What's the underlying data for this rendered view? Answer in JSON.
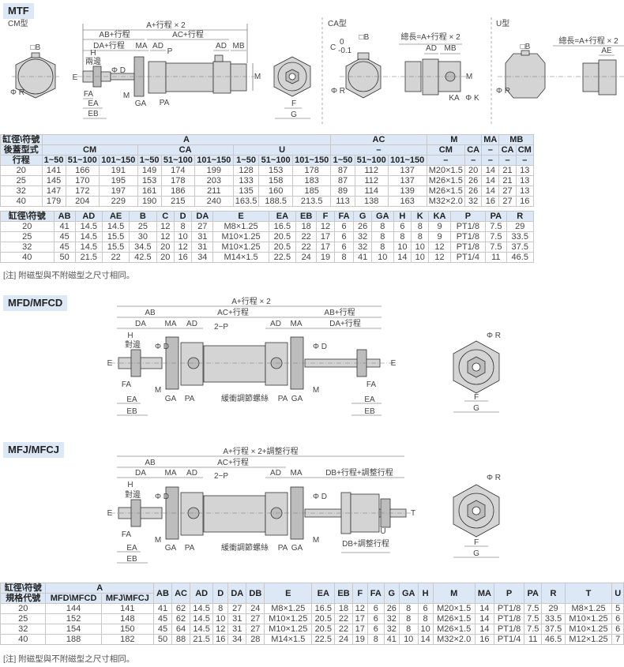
{
  "sections": {
    "mtf": "MTF",
    "mfd": "MFD/MFCD",
    "mfj": "MFJ/MFCJ"
  },
  "drawings": {
    "mtf": {
      "labels": [
        "CM型",
        "□B",
        "Φ R",
        "A+行程 × 2",
        "AB+行程",
        "AC+行程",
        "DA+行程",
        "MA",
        "AD",
        "AD",
        "MB",
        "H",
        "兩邊",
        "P",
        "Φ D",
        "E",
        "M",
        "FA",
        "M",
        "EA",
        "GA",
        "PA",
        "EB",
        "F",
        "G"
      ]
    },
    "ca": {
      "labels": [
        "CA型",
        "□B",
        "C",
        "0",
        "-0.1",
        "Φ R",
        "總長=A+行程 × 2",
        "AD",
        "MB",
        "M",
        "KA",
        "Φ K"
      ]
    },
    "u": {
      "labels": [
        "U型",
        "□B",
        "Φ R",
        "總長=A+行程 × 2",
        "AE"
      ]
    },
    "mfd": {
      "labels": [
        "A+行程 × 2",
        "AB",
        "AC+行程",
        "AB+行程",
        "DA",
        "MA",
        "AD",
        "2−P",
        "AD",
        "MA",
        "DA+行程",
        "H",
        "對邊",
        "Φ D",
        "Φ D",
        "E",
        "E",
        "FA",
        "FA",
        "M",
        "M",
        "GA",
        "PA",
        "緩衝調節螺絲",
        "PA",
        "GA",
        "EA",
        "EA",
        "EB",
        "EB",
        "Φ R",
        "F",
        "G"
      ]
    },
    "mfj": {
      "labels": [
        "A+行程 × 2+調整行程",
        "AB",
        "AC+行程",
        "DA",
        "MA",
        "AD",
        "2−P",
        "AD",
        "MA",
        "DB+行程+調整行程",
        "H",
        "對邊",
        "Φ D",
        "Φ D",
        "E",
        "T",
        "FA",
        "M",
        "M",
        "U",
        "GA",
        "PA",
        "緩衝調節螺絲",
        "PA",
        "GA",
        "DB+調整行程",
        "EA",
        "EB",
        "Φ R",
        "F",
        "G"
      ]
    }
  },
  "table1": {
    "head1": [
      "缸徑\\符號",
      "A",
      "AC",
      "M",
      "MA",
      "MB"
    ],
    "head2": [
      "後蓋型式",
      "CM",
      "CA",
      "U",
      "–",
      "CM",
      "CA",
      "–",
      "CA",
      "CM"
    ],
    "head3": [
      "行程",
      "1~50",
      "51~100",
      "101~150",
      "1~50",
      "51~100",
      "101~150",
      "1~50",
      "51~100",
      "101~150",
      "1~50",
      "51~100",
      "101~150",
      "–",
      "–",
      "–",
      "–",
      "–"
    ],
    "rows": [
      [
        "20",
        "141",
        "166",
        "191",
        "149",
        "174",
        "199",
        "128",
        "153",
        "178",
        "87",
        "112",
        "137",
        "M20×1.5",
        "20",
        "14",
        "21",
        "13"
      ],
      [
        "25",
        "145",
        "170",
        "195",
        "153",
        "178",
        "203",
        "133",
        "158",
        "183",
        "87",
        "112",
        "137",
        "M26×1.5",
        "26",
        "14",
        "21",
        "13"
      ],
      [
        "32",
        "147",
        "172",
        "197",
        "161",
        "186",
        "211",
        "135",
        "160",
        "185",
        "89",
        "114",
        "139",
        "M26×1.5",
        "26",
        "14",
        "27",
        "13"
      ],
      [
        "40",
        "179",
        "204",
        "229",
        "190",
        "215",
        "240",
        "163.5",
        "188.5",
        "213.5",
        "113",
        "138",
        "163",
        "M32×2.0",
        "32",
        "16",
        "27",
        "16"
      ]
    ]
  },
  "table2": {
    "head": [
      "缸徑\\符號",
      "AB",
      "AD",
      "AE",
      "B",
      "C",
      "D",
      "DA",
      "E",
      "EA",
      "EB",
      "F",
      "FA",
      "G",
      "GA",
      "H",
      "K",
      "KA",
      "P",
      "PA",
      "R"
    ],
    "rows": [
      [
        "20",
        "41",
        "14.5",
        "14.5",
        "25",
        "12",
        "8",
        "27",
        "M8×1.25",
        "16.5",
        "18",
        "12",
        "6",
        "26",
        "8",
        "6",
        "8",
        "9",
        "PT1/8",
        "7.5",
        "29"
      ],
      [
        "25",
        "45",
        "14.5",
        "15.5",
        "30",
        "12",
        "10",
        "31",
        "M10×1.25",
        "20.5",
        "22",
        "17",
        "6",
        "32",
        "8",
        "8",
        "8",
        "9",
        "PT1/8",
        "7.5",
        "33.5"
      ],
      [
        "32",
        "45",
        "14.5",
        "15.5",
        "34.5",
        "20",
        "12",
        "31",
        "M10×1.25",
        "20.5",
        "22",
        "17",
        "6",
        "32",
        "8",
        "10",
        "10",
        "12",
        "PT1/8",
        "7.5",
        "37.5"
      ],
      [
        "40",
        "50",
        "21.5",
        "22",
        "42.5",
        "20",
        "16",
        "34",
        "M14×1.5",
        "22.5",
        "24",
        "19",
        "8",
        "41",
        "10",
        "14",
        "10",
        "12",
        "PT1/4",
        "11",
        "46.5"
      ]
    ]
  },
  "note1": "[注] 附磁型與不附磁型之尺寸相同。",
  "table3": {
    "head1": [
      "缸徑\\符號",
      "A",
      "AB",
      "AC",
      "AD",
      "D",
      "DA",
      "DB",
      "E",
      "EA",
      "EB",
      "F",
      "FA",
      "G",
      "GA",
      "H",
      "M",
      "MA",
      "P",
      "PA",
      "R",
      "T",
      "U"
    ],
    "head2": [
      "規格代號",
      "MFD\\MFCD",
      "MFJ\\MFCJ"
    ],
    "rows": [
      [
        "20",
        "144",
        "141",
        "41",
        "62",
        "14.5",
        "8",
        "27",
        "24",
        "M8×1.25",
        "16.5",
        "18",
        "12",
        "6",
        "26",
        "8",
        "6",
        "M20×1.5",
        "14",
        "PT1/8",
        "7.5",
        "29",
        "M8×1.25",
        "5"
      ],
      [
        "25",
        "152",
        "148",
        "45",
        "62",
        "14.5",
        "10",
        "31",
        "27",
        "M10×1.25",
        "20.5",
        "22",
        "17",
        "6",
        "32",
        "8",
        "8",
        "M26×1.5",
        "14",
        "PT1/8",
        "7.5",
        "33.5",
        "M10×1.25",
        "6"
      ],
      [
        "32",
        "154",
        "150",
        "45",
        "64",
        "14.5",
        "12",
        "31",
        "27",
        "M10×1.25",
        "20.5",
        "22",
        "17",
        "6",
        "32",
        "8",
        "10",
        "M26×1.5",
        "14",
        "PT1/8",
        "7.5",
        "37.5",
        "M10×1.25",
        "6"
      ],
      [
        "40",
        "188",
        "182",
        "50",
        "88",
        "21.5",
        "16",
        "34",
        "28",
        "M14×1.5",
        "22.5",
        "24",
        "19",
        "8",
        "41",
        "10",
        "14",
        "M32×2.0",
        "16",
        "PT1/4",
        "11",
        "46.5",
        "M12×1.25",
        "7"
      ]
    ]
  },
  "note2": "[注] 附磁型與不附磁型之尺寸相同。"
}
